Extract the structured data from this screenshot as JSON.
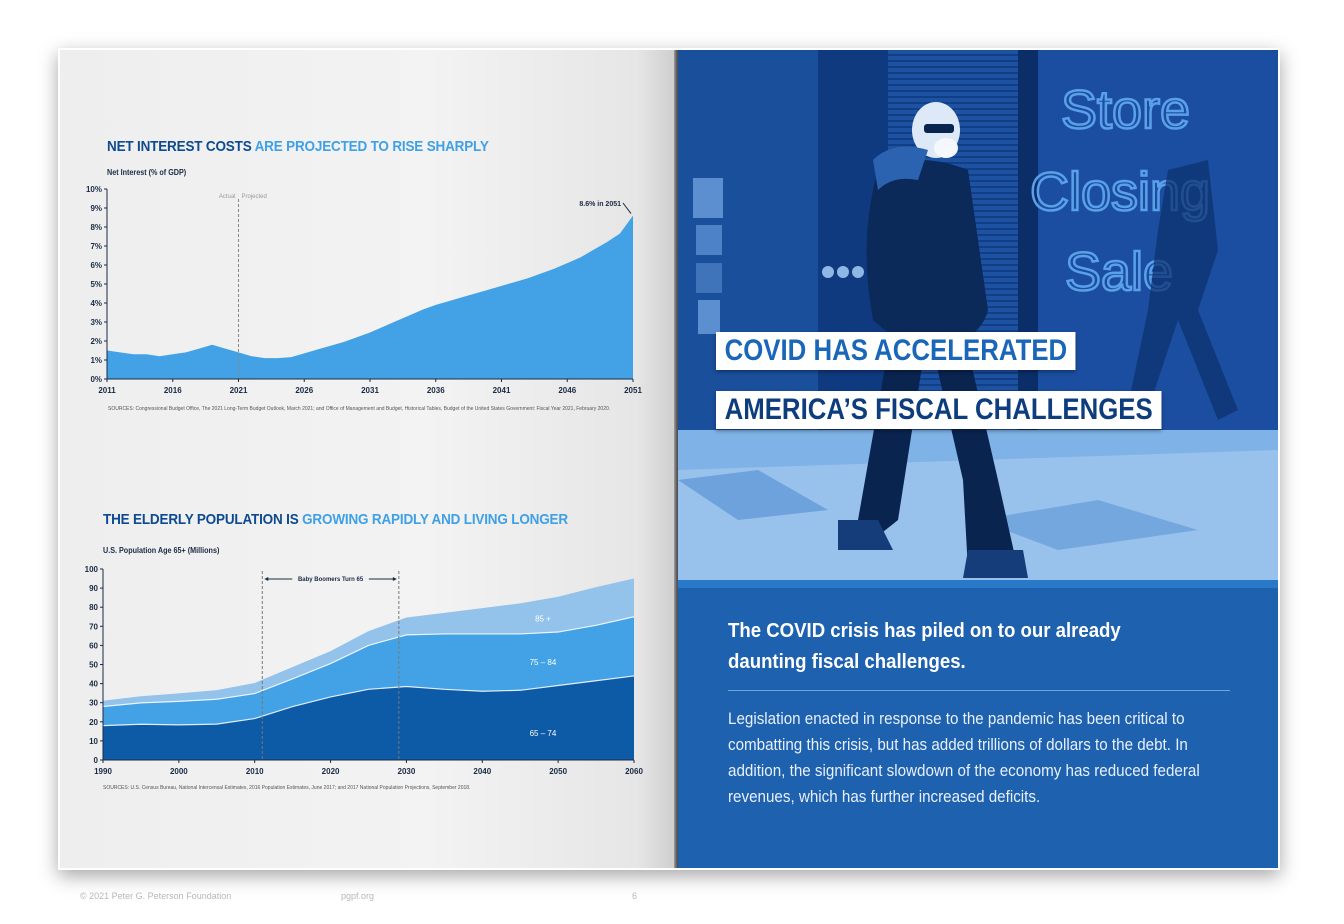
{
  "chart_data": [
    {
      "type": "area",
      "title": "NET INTEREST COSTS ARE PROJECTED TO RISE SHARPLY",
      "title_dark": "NET INTEREST COSTS",
      "title_light": "ARE PROJECTED TO RISE SHARPLY",
      "ylabel": "Net Interest (% of GDP)",
      "ylim": [
        0,
        10
      ],
      "xlim": [
        2011,
        2051
      ],
      "yticks": [
        "0%",
        "1%",
        "2%",
        "3%",
        "4%",
        "5%",
        "6%",
        "7%",
        "8%",
        "9%",
        "10%"
      ],
      "xticks": [
        "2011",
        "2016",
        "2021",
        "2026",
        "2031",
        "2036",
        "2041",
        "2046",
        "2051"
      ],
      "divider_year": 2021,
      "divider_labels": [
        "Actual",
        "Projected"
      ],
      "annotation": "8.6% in 2051",
      "x": [
        2011,
        2012,
        2013,
        2014,
        2015,
        2016,
        2017,
        2018,
        2019,
        2020,
        2021,
        2022,
        2023,
        2024,
        2025,
        2026,
        2027,
        2028,
        2029,
        2030,
        2031,
        2032,
        2033,
        2034,
        2035,
        2036,
        2037,
        2038,
        2039,
        2040,
        2041,
        2042,
        2043,
        2044,
        2045,
        2046,
        2047,
        2048,
        2049,
        2050,
        2051
      ],
      "y": [
        1.5,
        1.4,
        1.3,
        1.3,
        1.2,
        1.3,
        1.4,
        1.6,
        1.8,
        1.6,
        1.4,
        1.2,
        1.1,
        1.1,
        1.15,
        1.35,
        1.55,
        1.75,
        1.95,
        2.2,
        2.45,
        2.75,
        3.05,
        3.35,
        3.65,
        3.9,
        4.1,
        4.3,
        4.5,
        4.7,
        4.9,
        5.1,
        5.3,
        5.55,
        5.8,
        6.1,
        6.4,
        6.8,
        7.2,
        7.65,
        8.6
      ],
      "source": "SOURCES: Congressional Budget Office, The 2021 Long-Term Budget Outlook, March 2021; and Office of Management and Budget, Historical Tables, Budget of the United States Government: Fiscal Year 2021, February 2020.",
      "colors": {
        "fill": "#42a2e5",
        "axis": "#1a2a44"
      }
    },
    {
      "type": "area",
      "title": "THE ELDERLY POPULATION IS GROWING RAPIDLY AND LIVING LONGER",
      "title_dark": "THE ELDERLY POPULATION IS",
      "title_light": "GROWING RAPIDLY AND LIVING LONGER",
      "ylabel": "U.S. Population Age 65+ (Millions)",
      "ylim": [
        0,
        100
      ],
      "xlim": [
        1990,
        2060
      ],
      "yticks": [
        "0",
        "10",
        "20",
        "30",
        "40",
        "50",
        "60",
        "70",
        "80",
        "90",
        "100"
      ],
      "xticks": [
        "1990",
        "2000",
        "2010",
        "2020",
        "2030",
        "2040",
        "2050",
        "2060"
      ],
      "annotation": "Baby Boomers Turn 65",
      "annotation_range": [
        2011,
        2029
      ],
      "stacked": true,
      "x": [
        1990,
        1995,
        2000,
        2005,
        2010,
        2015,
        2020,
        2025,
        2030,
        2035,
        2040,
        2045,
        2050,
        2055,
        2060
      ],
      "series": [
        {
          "name": "65 – 74",
          "values": [
            18,
            18.7,
            18.4,
            18.8,
            21.7,
            28,
            33,
            37,
            38.5,
            37,
            36,
            36.5,
            39,
            41.5,
            44
          ]
        },
        {
          "name": "75 – 84",
          "values": [
            10,
            11.2,
            12.3,
            13,
            13.1,
            14.5,
            17.5,
            23,
            27,
            29,
            30,
            29.5,
            28,
            29,
            31
          ]
        },
        {
          "name": "85 +",
          "values": [
            3,
            3.5,
            4.2,
            4.8,
            5.5,
            6.2,
            6.5,
            7.5,
            9.1,
            11,
            13.5,
            16,
            18.5,
            20,
            20
          ]
        }
      ],
      "source": "SOURCES: U.S. Census Bureau, National Intercensal Estimates, 2016 Population Estimates, June 2017; and 2017 National Population Projections, September 2018.",
      "colors": {
        "dark": "#0d5aa7",
        "mid": "#42a2e5",
        "light": "#93c2ea",
        "axis": "#1a2a44"
      }
    }
  ],
  "footer": {
    "copyright": "© 2021 Peter G. Peterson Foundation",
    "url": "pgpf.org",
    "page_number": "6"
  },
  "right_page": {
    "sign_lines": [
      "Store",
      "Closing",
      "Sale"
    ],
    "banner_line1": "COVID HAS ACCELERATED",
    "banner_line2": "AMERICA’S FISCAL CHALLENGES",
    "lead": "The COVID crisis has piled on to our already daunting fiscal challenges.",
    "body": "Legislation enacted in response to the pandemic has been critical to combatting this crisis, but has added trillions of dollars to the debt. In addition, the significant slowdown of the economy has reduced federal revenues, which has further increased deficits.",
    "colors": {
      "panel": "#1e61ae",
      "banner_text": "#1a66b8",
      "banner_text_dark": "#0e3d7e"
    }
  }
}
